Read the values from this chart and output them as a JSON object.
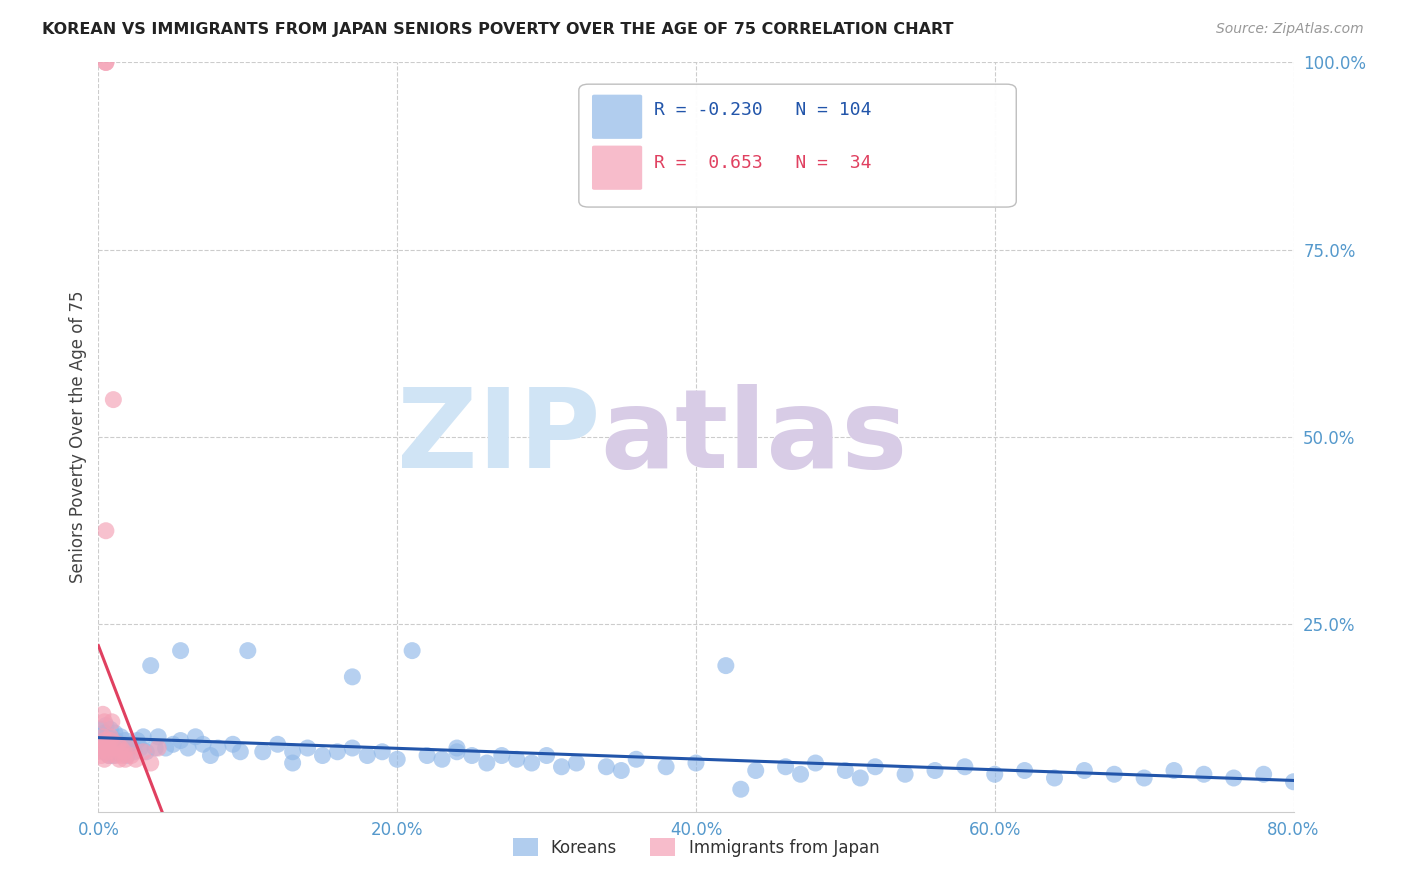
{
  "title": "KOREAN VS IMMIGRANTS FROM JAPAN SENIORS POVERTY OVER THE AGE OF 75 CORRELATION CHART",
  "source": "Source: ZipAtlas.com",
  "ylabel": "Seniors Poverty Over the Age of 75",
  "xlim": [
    0.0,
    0.8
  ],
  "ylim": [
    0.0,
    1.0
  ],
  "xtick_labels": [
    "0.0%",
    "20.0%",
    "40.0%",
    "60.0%",
    "80.0%"
  ],
  "xtick_vals": [
    0.0,
    0.2,
    0.4,
    0.6,
    0.8
  ],
  "ytick_labels": [
    "100.0%",
    "75.0%",
    "50.0%",
    "25.0%"
  ],
  "ytick_vals": [
    1.0,
    0.75,
    0.5,
    0.25
  ],
  "korean_R": -0.23,
  "korean_N": 104,
  "japan_R": 0.653,
  "japan_N": 34,
  "korean_color": "#90b8e8",
  "japan_color": "#f4a0b5",
  "korean_line_color": "#2255aa",
  "japan_line_color": "#e04060",
  "legend_korean_label": "Koreans",
  "legend_japan_label": "Immigrants from Japan",
  "background_color": "#ffffff",
  "grid_color": "#cccccc",
  "title_color": "#222222",
  "axis_label_color": "#5599cc",
  "korean_x": [
    0.001,
    0.002,
    0.002,
    0.003,
    0.003,
    0.004,
    0.004,
    0.005,
    0.005,
    0.006,
    0.006,
    0.007,
    0.007,
    0.008,
    0.008,
    0.009,
    0.009,
    0.01,
    0.01,
    0.011,
    0.011,
    0.012,
    0.013,
    0.014,
    0.015,
    0.016,
    0.017,
    0.018,
    0.019,
    0.02,
    0.022,
    0.024,
    0.026,
    0.028,
    0.03,
    0.032,
    0.035,
    0.038,
    0.04,
    0.045,
    0.05,
    0.055,
    0.06,
    0.065,
    0.07,
    0.075,
    0.08,
    0.09,
    0.1,
    0.11,
    0.12,
    0.13,
    0.14,
    0.15,
    0.16,
    0.17,
    0.18,
    0.19,
    0.2,
    0.21,
    0.22,
    0.23,
    0.24,
    0.25,
    0.26,
    0.27,
    0.28,
    0.29,
    0.3,
    0.32,
    0.34,
    0.36,
    0.38,
    0.4,
    0.42,
    0.44,
    0.46,
    0.48,
    0.5,
    0.52,
    0.54,
    0.56,
    0.58,
    0.6,
    0.62,
    0.64,
    0.66,
    0.68,
    0.7,
    0.72,
    0.74,
    0.76,
    0.78,
    0.8,
    0.35,
    0.43,
    0.47,
    0.51,
    0.055,
    0.095,
    0.13,
    0.17,
    0.24,
    0.31
  ],
  "korean_y": [
    0.09,
    0.11,
    0.085,
    0.095,
    0.1,
    0.08,
    0.105,
    0.09,
    0.115,
    0.085,
    0.1,
    0.075,
    0.095,
    0.11,
    0.08,
    0.09,
    0.085,
    0.095,
    0.075,
    0.105,
    0.08,
    0.095,
    0.09,
    0.085,
    0.1,
    0.08,
    0.09,
    0.095,
    0.075,
    0.085,
    0.09,
    0.08,
    0.095,
    0.085,
    0.1,
    0.08,
    0.195,
    0.085,
    0.1,
    0.085,
    0.09,
    0.095,
    0.085,
    0.1,
    0.09,
    0.075,
    0.085,
    0.09,
    0.215,
    0.08,
    0.09,
    0.08,
    0.085,
    0.075,
    0.08,
    0.085,
    0.075,
    0.08,
    0.07,
    0.215,
    0.075,
    0.07,
    0.08,
    0.075,
    0.065,
    0.075,
    0.07,
    0.065,
    0.075,
    0.065,
    0.06,
    0.07,
    0.06,
    0.065,
    0.195,
    0.055,
    0.06,
    0.065,
    0.055,
    0.06,
    0.05,
    0.055,
    0.06,
    0.05,
    0.055,
    0.045,
    0.055,
    0.05,
    0.045,
    0.055,
    0.05,
    0.045,
    0.05,
    0.04,
    0.055,
    0.03,
    0.05,
    0.045,
    0.215,
    0.08,
    0.065,
    0.18,
    0.085,
    0.06
  ],
  "japan_x": [
    0.001,
    0.002,
    0.002,
    0.003,
    0.003,
    0.004,
    0.004,
    0.005,
    0.005,
    0.006,
    0.006,
    0.007,
    0.007,
    0.008,
    0.008,
    0.009,
    0.01,
    0.011,
    0.012,
    0.013,
    0.014,
    0.015,
    0.016,
    0.017,
    0.018,
    0.02,
    0.022,
    0.025,
    0.03,
    0.035,
    0.003,
    0.004,
    0.005,
    0.04
  ],
  "japan_y": [
    0.08,
    0.075,
    0.09,
    0.085,
    0.1,
    0.07,
    0.095,
    1.0,
    1.0,
    0.08,
    0.09,
    0.075,
    0.085,
    0.095,
    0.1,
    0.12,
    0.55,
    0.085,
    0.075,
    0.09,
    0.07,
    0.085,
    0.075,
    0.08,
    0.07,
    0.085,
    0.075,
    0.07,
    0.08,
    0.065,
    0.13,
    0.12,
    0.375,
    0.085
  ]
}
